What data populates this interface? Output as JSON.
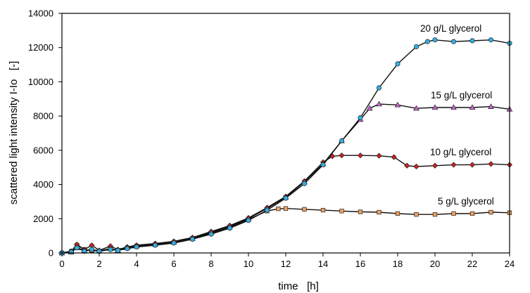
{
  "chart_data": {
    "type": "line",
    "xlabel": "time   [h]",
    "ylabel": "scattered light intensity I-Io   [-]",
    "xlim": [
      0,
      24
    ],
    "ylim": [
      0,
      14000
    ],
    "xticks": [
      0,
      2,
      4,
      6,
      8,
      10,
      12,
      14,
      16,
      18,
      20,
      22,
      24
    ],
    "yticks": [
      0,
      2000,
      4000,
      6000,
      8000,
      10000,
      12000,
      14000
    ],
    "grid": false,
    "series": [
      {
        "name": "5 g/L glycerol",
        "marker": "square",
        "color": "#F0A060",
        "points": [
          [
            0,
            0
          ],
          [
            0.5,
            100
          ],
          [
            0.8,
            450
          ],
          [
            1.2,
            200
          ],
          [
            1.6,
            150
          ],
          [
            2,
            100
          ],
          [
            2.6,
            250
          ],
          [
            3,
            150
          ],
          [
            3.5,
            300
          ],
          [
            4,
            400
          ],
          [
            5,
            500
          ],
          [
            6,
            620
          ],
          [
            7,
            850
          ],
          [
            8,
            1150
          ],
          [
            9,
            1500
          ],
          [
            10,
            1950
          ],
          [
            11,
            2450
          ],
          [
            11.6,
            2580
          ],
          [
            12,
            2600
          ],
          [
            13,
            2550
          ],
          [
            14,
            2500
          ],
          [
            15,
            2450
          ],
          [
            16,
            2400
          ],
          [
            17,
            2380
          ],
          [
            18,
            2300
          ],
          [
            19,
            2250
          ],
          [
            20,
            2250
          ],
          [
            21,
            2300
          ],
          [
            22,
            2300
          ],
          [
            23,
            2380
          ],
          [
            24,
            2350
          ]
        ]
      },
      {
        "name": "10 g/L glycerol",
        "marker": "diamond",
        "color": "#CC2222",
        "points": [
          [
            0,
            0
          ],
          [
            0.5,
            100
          ],
          [
            0.8,
            500
          ],
          [
            1.2,
            200
          ],
          [
            1.6,
            450
          ],
          [
            2,
            150
          ],
          [
            2.6,
            400
          ],
          [
            3,
            200
          ],
          [
            3.5,
            350
          ],
          [
            4,
            450
          ],
          [
            5,
            550
          ],
          [
            6,
            680
          ],
          [
            7,
            900
          ],
          [
            8,
            1250
          ],
          [
            9,
            1600
          ],
          [
            10,
            2050
          ],
          [
            11,
            2650
          ],
          [
            12,
            3300
          ],
          [
            13,
            4200
          ],
          [
            14,
            5300
          ],
          [
            14.5,
            5650
          ],
          [
            15,
            5700
          ],
          [
            16,
            5700
          ],
          [
            17,
            5680
          ],
          [
            17.8,
            5600
          ],
          [
            18.5,
            5100
          ],
          [
            19,
            5050
          ],
          [
            20,
            5100
          ],
          [
            21,
            5150
          ],
          [
            22,
            5150
          ],
          [
            23,
            5200
          ],
          [
            24,
            5150
          ]
        ]
      },
      {
        "name": "15 g/L glycerol",
        "marker": "triangle",
        "color": "#CC66CC",
        "points": [
          [
            0,
            0
          ],
          [
            0.5,
            50
          ],
          [
            0.8,
            300
          ],
          [
            1.2,
            150
          ],
          [
            1.6,
            200
          ],
          [
            2,
            120
          ],
          [
            2.6,
            250
          ],
          [
            3,
            150
          ],
          [
            3.5,
            300
          ],
          [
            4,
            400
          ],
          [
            5,
            500
          ],
          [
            6,
            620
          ],
          [
            7,
            850
          ],
          [
            8,
            1200
          ],
          [
            9,
            1550
          ],
          [
            10,
            2000
          ],
          [
            11,
            2600
          ],
          [
            12,
            3250
          ],
          [
            13,
            4150
          ],
          [
            14,
            5200
          ],
          [
            15,
            6550
          ],
          [
            16,
            7800
          ],
          [
            16.5,
            8450
          ],
          [
            17,
            8700
          ],
          [
            18,
            8650
          ],
          [
            19,
            8450
          ],
          [
            20,
            8500
          ],
          [
            21,
            8500
          ],
          [
            22,
            8500
          ],
          [
            23,
            8550
          ],
          [
            24,
            8400
          ]
        ]
      },
      {
        "name": "20 g/L glycerol",
        "marker": "circle",
        "color": "#33B0E0",
        "points": [
          [
            0,
            0
          ],
          [
            0.5,
            50
          ],
          [
            0.8,
            300
          ],
          [
            1.2,
            100
          ],
          [
            1.6,
            200
          ],
          [
            2,
            100
          ],
          [
            2.6,
            200
          ],
          [
            3,
            150
          ],
          [
            3.5,
            250
          ],
          [
            4,
            350
          ],
          [
            5,
            450
          ],
          [
            6,
            580
          ],
          [
            7,
            800
          ],
          [
            8,
            1100
          ],
          [
            9,
            1450
          ],
          [
            10,
            1900
          ],
          [
            11,
            2500
          ],
          [
            12,
            3200
          ],
          [
            13,
            4050
          ],
          [
            14,
            5150
          ],
          [
            15,
            6550
          ],
          [
            16,
            7900
          ],
          [
            17,
            9650
          ],
          [
            18,
            11050
          ],
          [
            19,
            12050
          ],
          [
            19.6,
            12350
          ],
          [
            20,
            12450
          ],
          [
            21,
            12350
          ],
          [
            22,
            12400
          ],
          [
            23,
            12450
          ],
          [
            24,
            12250
          ]
        ]
      }
    ]
  }
}
